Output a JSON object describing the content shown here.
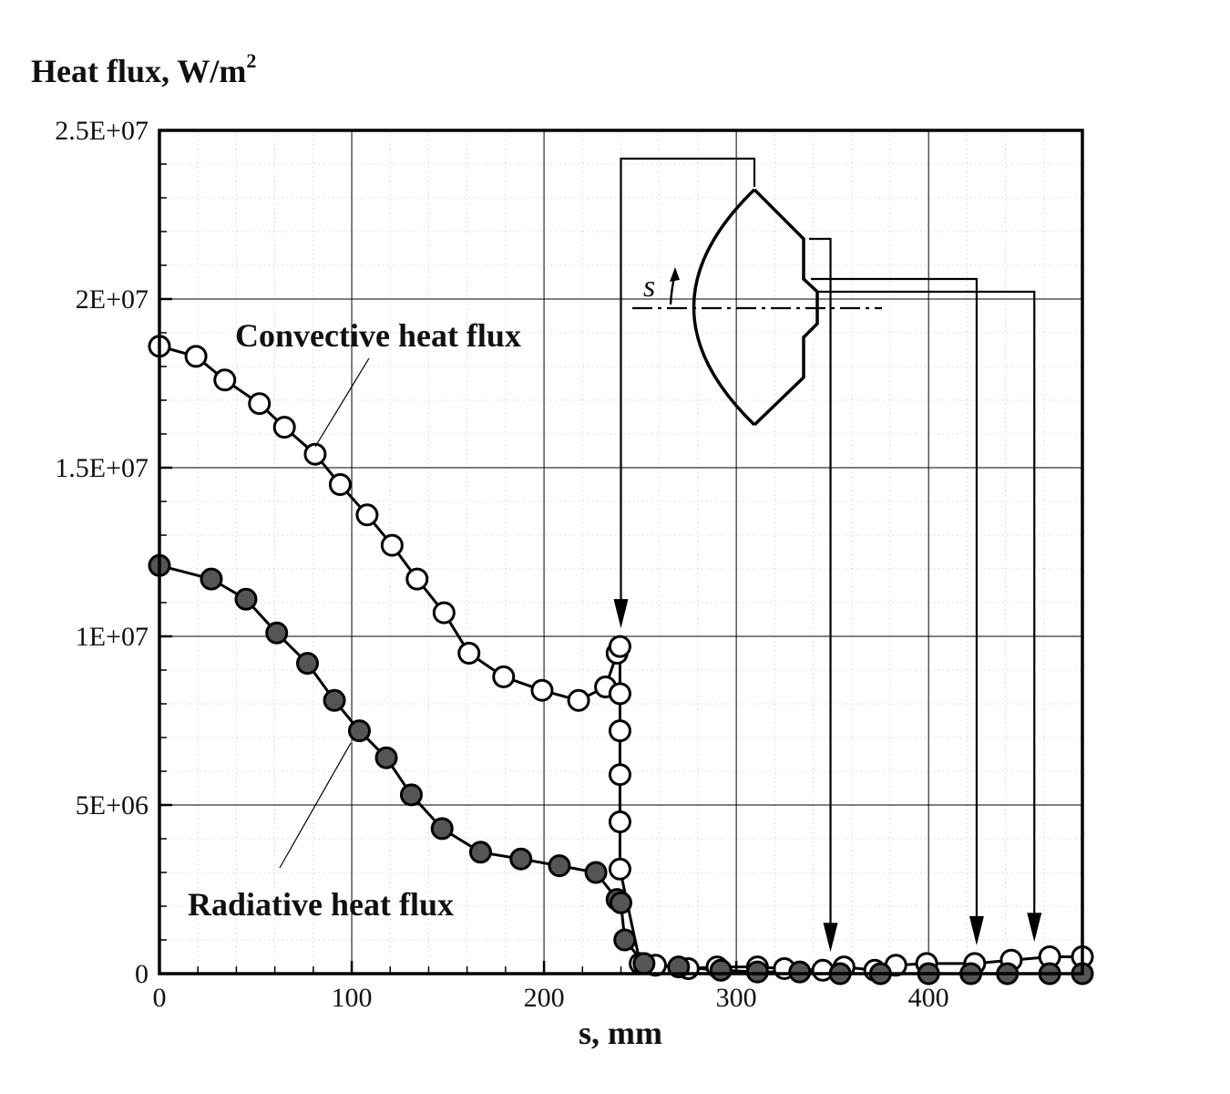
{
  "chart_data": {
    "type": "line",
    "ylabel": "Heat flux, W/m",
    "ylabel_sup": "2",
    "xlabel": "s, mm",
    "xlim": [
      0,
      480
    ],
    "ylim": [
      0,
      25000000
    ],
    "x_ticks": [
      0,
      100,
      200,
      300,
      400
    ],
    "x_tick_labels": [
      "0",
      "100",
      "200",
      "300",
      "400"
    ],
    "y_ticks": [
      0,
      5000000,
      10000000,
      15000000,
      20000000,
      25000000
    ],
    "y_tick_labels": [
      "0",
      "5E+06",
      "1E+07",
      "1.5E+07",
      "2E+07",
      "2.5E+07"
    ],
    "grid": true,
    "series": [
      {
        "name": "Convective heat flux",
        "marker": "open-circle",
        "color": "#000000",
        "x": [
          0,
          19,
          34,
          52,
          65,
          81,
          94,
          108,
          121,
          134,
          148,
          161,
          179,
          199,
          218,
          232,
          238,
          239.5,
          239.5,
          239.5,
          239.5,
          239.5,
          239.5,
          250,
          258,
          275,
          290,
          311,
          325,
          345,
          356,
          372,
          383,
          399,
          424,
          443,
          463,
          480
        ],
        "y": [
          18600000,
          18300000,
          17600000,
          16900000,
          16200000,
          15400000,
          14500000,
          13600000,
          12700000,
          11700000,
          10700000,
          9500000,
          8800000,
          8400000,
          8100000,
          8500000,
          9500000,
          9700000,
          8300000,
          7200000,
          5900000,
          4500000,
          3100000,
          300000,
          250000,
          150000,
          200000,
          200000,
          150000,
          100000,
          200000,
          100000,
          250000,
          300000,
          300000,
          400000,
          500000,
          500000
        ]
      },
      {
        "name": "Radiative heat flux",
        "marker": "filled-circle",
        "color": "#555555",
        "x": [
          0,
          27,
          45,
          61,
          77,
          91,
          104,
          118,
          131,
          147,
          167,
          188,
          208,
          227,
          238,
          240,
          242,
          252,
          270,
          292,
          311,
          333,
          354,
          375,
          400,
          422,
          441,
          463,
          480
        ],
        "y": [
          12100000,
          11700000,
          11100000,
          10100000,
          9200000,
          8100000,
          7200000,
          6400000,
          5300000,
          4300000,
          3600000,
          3400000,
          3200000,
          3000000,
          2200000,
          2100000,
          1000000,
          300000,
          200000,
          100000,
          50000,
          50000,
          0,
          0,
          0,
          0,
          0,
          0,
          0
        ]
      }
    ],
    "annotations": [
      {
        "text": "Convective heat flux",
        "target_series": 0
      },
      {
        "text": "Radiative heat flux",
        "target_series": 1
      }
    ],
    "inset": {
      "description_label": "s",
      "arrow_targets_x": [
        240,
        349,
        425,
        455
      ]
    }
  }
}
